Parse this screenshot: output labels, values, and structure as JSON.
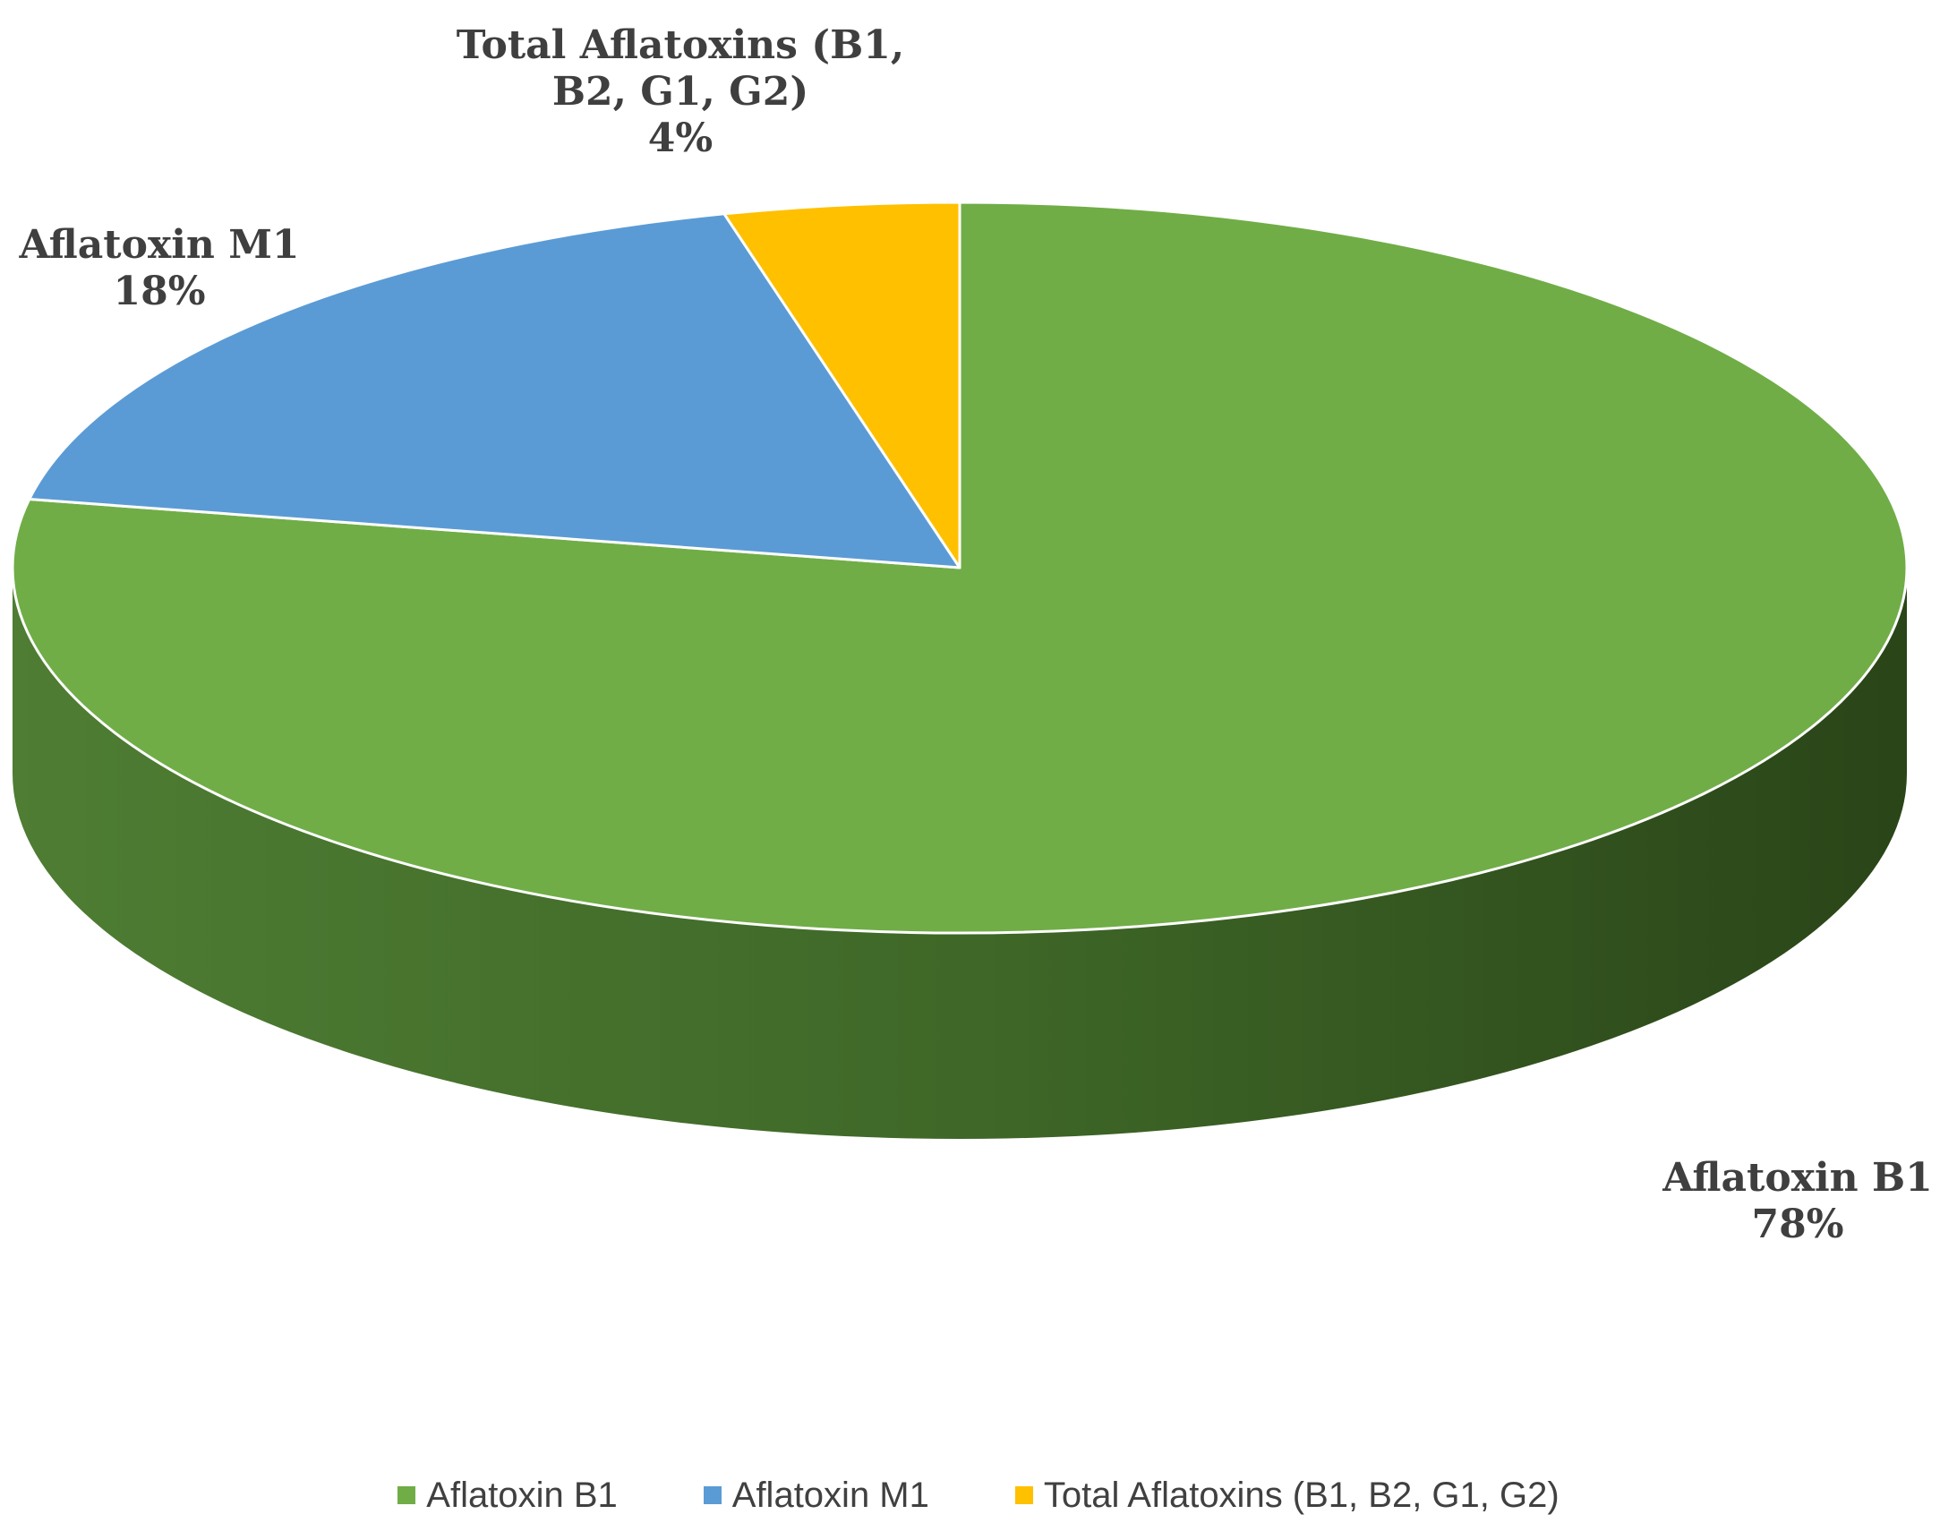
{
  "chart_data": {
    "type": "pie",
    "title": "",
    "slices": [
      {
        "name": "Aflatoxin B1",
        "label_lines": [
          "Aflatoxin B1"
        ],
        "value": 78,
        "percent_label": "78%",
        "color": "#70ad47"
      },
      {
        "name": "Aflatoxin M1",
        "label_lines": [
          "Aflatoxin M1"
        ],
        "value": 18,
        "percent_label": "18%",
        "color": "#5b9bd5"
      },
      {
        "name": "Total Aflatoxins (B1, B2, G1, G2)",
        "label_lines": [
          "Total Aflatoxins (B1,",
          "B2, G1, G2)"
        ],
        "value": 4,
        "percent_label": "4%",
        "color": "#ffc000"
      }
    ],
    "style": "3d",
    "legend_position": "bottom",
    "data_labels": "outside"
  }
}
